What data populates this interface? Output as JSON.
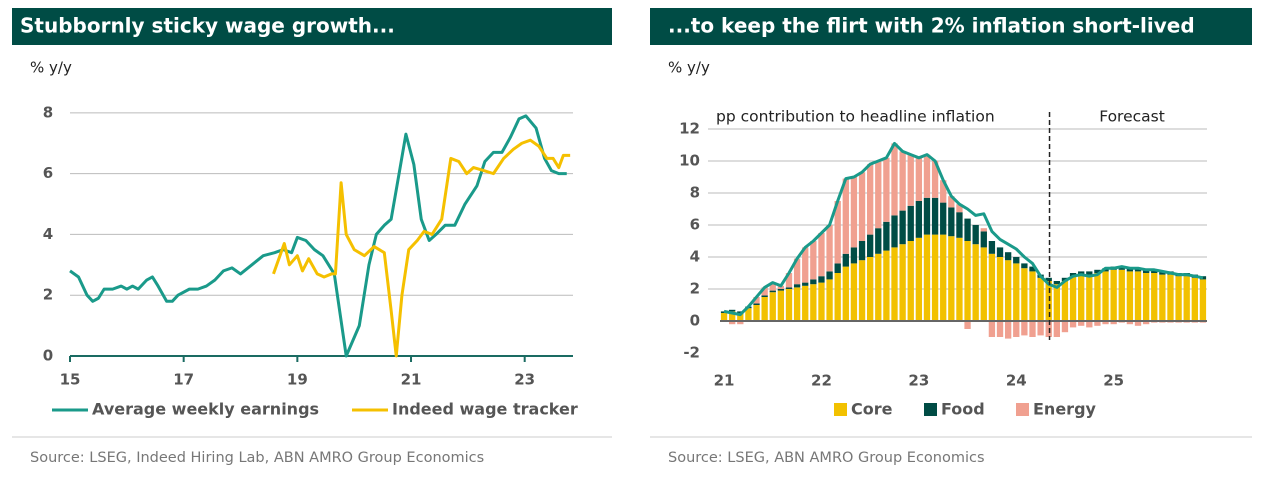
{
  "chart_data": [
    {
      "type": "line",
      "title": "Stubbornly sticky wage growth...",
      "ylabel": "% y/y",
      "source": "Source: LSEG, Indeed Hiring Lab, ABN AMRO Group Economics",
      "xlim": [
        15,
        23.85
      ],
      "xticks": [
        15,
        17,
        19,
        21,
        23
      ],
      "ylim": [
        0,
        8.6
      ],
      "yticks": [
        0,
        2,
        4,
        6,
        8
      ],
      "grid": true,
      "series": [
        {
          "name": "Average weekly earnings",
          "color": "#1a9a8a",
          "x": [
            15,
            15.15,
            15.3,
            15.4,
            15.5,
            15.6,
            15.75,
            15.9,
            16,
            16.1,
            16.2,
            16.35,
            16.45,
            16.55,
            16.7,
            16.8,
            16.9,
            17.1,
            17.25,
            17.4,
            17.55,
            17.7,
            17.85,
            18,
            18.2,
            18.4,
            18.6,
            18.75,
            18.9,
            19,
            19.15,
            19.3,
            19.45,
            19.65,
            19.86,
            20.09,
            20.26,
            20.39,
            20.53,
            20.65,
            20.79,
            20.91,
            21.05,
            21.18,
            21.32,
            21.44,
            21.6,
            21.77,
            21.95,
            22.16,
            22.3,
            22.45,
            22.6,
            22.75,
            22.9,
            23.02,
            23.2,
            23.35,
            23.47,
            23.6,
            23.74
          ],
          "values": [
            2.8,
            2.6,
            2.0,
            1.8,
            1.9,
            2.2,
            2.2,
            2.3,
            2.2,
            2.3,
            2.2,
            2.5,
            2.6,
            2.3,
            1.8,
            1.8,
            2.0,
            2.2,
            2.2,
            2.3,
            2.5,
            2.8,
            2.9,
            2.7,
            3.0,
            3.3,
            3.4,
            3.5,
            3.4,
            3.9,
            3.8,
            3.5,
            3.3,
            2.7,
            0.0,
            1.0,
            3.0,
            4.0,
            4.3,
            4.5,
            6.0,
            7.3,
            6.3,
            4.5,
            3.8,
            4.0,
            4.3,
            4.3,
            5.0,
            5.6,
            6.4,
            6.7,
            6.7,
            7.2,
            7.8,
            7.9,
            7.5,
            6.5,
            6.1,
            6.0,
            6.0
          ]
        },
        {
          "name": "Indeed wage tracker",
          "color": "#f5c000",
          "x": [
            18.58,
            18.77,
            18.86,
            19,
            19.09,
            19.2,
            19.35,
            19.47,
            19.6,
            19.67,
            19.77,
            19.86,
            20,
            20.18,
            20.35,
            20.53,
            20.65,
            20.74,
            20.84,
            20.96,
            21.11,
            21.23,
            21.37,
            21.54,
            21.7,
            21.84,
            21.98,
            22.1,
            22.28,
            22.45,
            22.63,
            22.8,
            22.95,
            23.1,
            23.25,
            23.39,
            23.5,
            23.6,
            23.68,
            23.8
          ],
          "values": [
            2.7,
            3.7,
            3.0,
            3.3,
            2.8,
            3.2,
            2.7,
            2.6,
            2.7,
            2.7,
            5.7,
            4.0,
            3.5,
            3.3,
            3.6,
            3.4,
            1.5,
            0.0,
            2.0,
            3.5,
            3.8,
            4.1,
            4.0,
            4.5,
            6.5,
            6.4,
            6.0,
            6.2,
            6.1,
            6.0,
            6.5,
            6.8,
            7.0,
            7.1,
            6.9,
            6.5,
            6.5,
            6.2,
            6.6,
            6.6
          ]
        }
      ]
    },
    {
      "type": "stacked_bar",
      "title": "...to keep the flirt with 2% inflation short-lived",
      "ylabel": "% y/y",
      "annotations": [
        "pp contribution to headline inflation",
        "Forecast"
      ],
      "source": "Source: LSEG, ABN AMRO Group Economics",
      "categories": [
        "21",
        null,
        null,
        null,
        null,
        null,
        null,
        null,
        null,
        null,
        null,
        null,
        "22",
        null,
        null,
        null,
        null,
        null,
        null,
        null,
        null,
        null,
        null,
        null,
        "23",
        null,
        null,
        null,
        null,
        null,
        null,
        null,
        null,
        null,
        null,
        null,
        "24",
        null,
        null,
        null,
        null,
        null,
        null,
        null,
        null,
        null,
        null,
        null,
        "25",
        null,
        null,
        null,
        null,
        null,
        null,
        null,
        null,
        null,
        null,
        null
      ],
      "ylim": [
        -2.5,
        12.5
      ],
      "yticks": [
        -2,
        0,
        2,
        4,
        6,
        8,
        10,
        12
      ],
      "grid": true,
      "series": [
        {
          "name": "Core",
          "color": "#f2c100",
          "values": [
            0.5,
            0.6,
            0.5,
            0.8,
            1.0,
            1.5,
            1.8,
            1.9,
            2.0,
            2.1,
            2.2,
            2.3,
            2.4,
            2.6,
            3.0,
            3.4,
            3.6,
            3.8,
            4.0,
            4.2,
            4.4,
            4.6,
            4.8,
            5.0,
            5.2,
            5.4,
            5.4,
            5.4,
            5.3,
            5.2,
            5.0,
            4.8,
            4.6,
            4.2,
            4.0,
            3.8,
            3.6,
            3.3,
            3.1,
            2.7,
            2.5,
            2.3,
            2.5,
            2.8,
            2.9,
            2.9,
            3.0,
            3.1,
            3.2,
            3.2,
            3.1,
            3.1,
            3.0,
            3.0,
            2.9,
            2.9,
            2.8,
            2.8,
            2.7,
            2.6
          ]
        },
        {
          "name": "Food",
          "color": "#004c45",
          "values": [
            0.1,
            0.1,
            0.1,
            0.1,
            0.1,
            0.1,
            0.1,
            0.1,
            0.1,
            0.2,
            0.2,
            0.3,
            0.4,
            0.5,
            0.6,
            0.8,
            1.0,
            1.2,
            1.4,
            1.6,
            1.8,
            2.0,
            2.1,
            2.2,
            2.3,
            2.3,
            2.3,
            2.0,
            1.8,
            1.6,
            1.4,
            1.2,
            1.0,
            0.8,
            0.6,
            0.5,
            0.4,
            0.3,
            0.3,
            0.2,
            0.2,
            0.2,
            0.2,
            0.2,
            0.2,
            0.2,
            0.2,
            0.2,
            0.2,
            0.2,
            0.2,
            0.2,
            0.2,
            0.2,
            0.2,
            0.2,
            0.2,
            0.2,
            0.2,
            0.2
          ]
        },
        {
          "name": "Energy",
          "color": "#f0a090",
          "values": [
            0.0,
            -0.2,
            -0.2,
            0.0,
            0.4,
            0.5,
            0.5,
            0.2,
            0.9,
            1.6,
            2.2,
            2.4,
            2.7,
            2.9,
            3.9,
            4.7,
            4.4,
            4.3,
            4.4,
            4.2,
            4.0,
            4.5,
            3.7,
            3.2,
            2.7,
            2.7,
            2.3,
            1.4,
            0.7,
            0.5,
            -0.5,
            0.0,
            0.2,
            -1.0,
            -1.0,
            -1.1,
            -1.0,
            -0.9,
            -1.0,
            -0.9,
            -1.0,
            -1.0,
            -0.7,
            -0.4,
            -0.3,
            -0.4,
            -0.3,
            -0.2,
            -0.2,
            -0.1,
            -0.2,
            -0.3,
            -0.2,
            -0.1,
            -0.1,
            -0.1,
            -0.1,
            -0.1,
            -0.1,
            -0.1
          ]
        }
      ],
      "line": {
        "color": "#1a9a8a",
        "values": [
          0.6,
          0.5,
          0.4,
          0.9,
          1.5,
          2.1,
          2.4,
          2.2,
          3.0,
          3.9,
          4.6,
          5.0,
          5.5,
          6.0,
          7.5,
          8.9,
          9.0,
          9.3,
          9.8,
          10.0,
          10.2,
          11.1,
          10.6,
          10.4,
          10.2,
          10.4,
          10.0,
          8.8,
          7.8,
          7.3,
          7.0,
          6.6,
          6.7,
          5.6,
          5.1,
          4.8,
          4.5,
          4.0,
          3.6,
          2.8,
          2.3,
          2.1,
          2.5,
          2.8,
          2.9,
          2.8,
          2.9,
          3.3,
          3.3,
          3.4,
          3.3,
          3.3,
          3.2,
          3.2,
          3.1,
          3.0,
          2.9,
          2.9,
          2.8,
          2.7
        ]
      }
    }
  ]
}
